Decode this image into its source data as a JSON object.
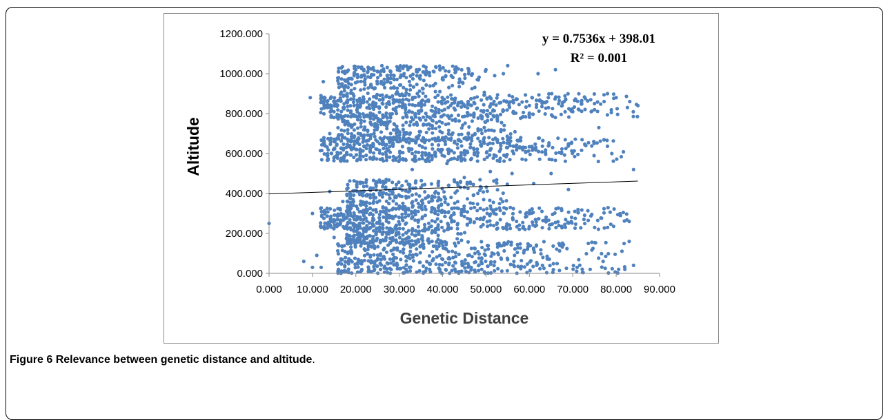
{
  "figure": {
    "caption_label": "Figure 6",
    "caption_text": "Relevance between genetic distance and altitude",
    "caption_end": "."
  },
  "chart_data": {
    "type": "scatter",
    "xlabel": "Genetic Distance",
    "ylabel": "Altitude",
    "xlim": [
      0,
      90
    ],
    "ylim": [
      0,
      1200
    ],
    "x_ticks": [
      "0.000",
      "10.000",
      "20.000",
      "30.000",
      "40.000",
      "50.000",
      "60.000",
      "70.000",
      "80.000",
      "90.000"
    ],
    "y_ticks": [
      "0.000",
      "200.000",
      "400.000",
      "600.000",
      "800.000",
      "1000.000",
      "1200.000"
    ],
    "trendline": {
      "slope": 0.7536,
      "intercept": 398.01,
      "x_range": [
        0,
        85
      ]
    },
    "annotations": [
      "y = 0.7536x + 398.01",
      "R² = 0.001"
    ],
    "series": [
      {
        "marker_color": "#4f81bd",
        "points": [
          [
            0.0,
            250
          ],
          [
            8.0,
            60
          ],
          [
            9.5,
            880
          ],
          [
            10,
            300
          ],
          [
            10,
            30
          ],
          [
            11,
            90
          ],
          [
            12,
            30
          ],
          [
            12.5,
            960
          ],
          [
            13,
            840
          ],
          [
            13.5,
            590
          ],
          [
            14,
            410
          ],
          [
            14,
            700
          ],
          [
            14,
            240
          ],
          [
            15,
            860
          ],
          [
            15,
            180
          ],
          [
            16,
            980
          ],
          [
            16,
            20
          ],
          [
            17,
            760
          ],
          [
            17,
            360
          ],
          [
            18,
            1010
          ],
          [
            18,
            900
          ],
          [
            19,
            620
          ],
          [
            19,
            100
          ],
          [
            20,
            1020
          ],
          [
            21,
            450
          ],
          [
            22,
            990
          ],
          [
            23,
            20
          ],
          [
            24,
            1030
          ],
          [
            25,
            660
          ],
          [
            26,
            1040
          ],
          [
            27,
            470
          ],
          [
            28,
            1010
          ],
          [
            29,
            380
          ],
          [
            30,
            1030
          ],
          [
            31,
            990
          ],
          [
            32,
            1020
          ],
          [
            33,
            520
          ],
          [
            34,
            1010
          ],
          [
            35,
            430
          ],
          [
            36,
            1000
          ],
          [
            37,
            20
          ],
          [
            38,
            1010
          ],
          [
            39,
            440
          ],
          [
            40,
            980
          ],
          [
            41,
            550
          ],
          [
            42,
            990
          ],
          [
            43,
            10
          ],
          [
            44,
            960
          ],
          [
            45,
            480
          ],
          [
            46,
            1000
          ],
          [
            47,
            350
          ],
          [
            48,
            970
          ],
          [
            49,
            20
          ],
          [
            50,
            1020
          ],
          [
            51,
            510
          ],
          [
            52,
            990
          ],
          [
            53,
            150
          ],
          [
            54,
            1000
          ],
          [
            55,
            1040
          ],
          [
            56,
            500
          ],
          [
            57,
            870
          ],
          [
            58,
            680
          ],
          [
            59,
            220
          ],
          [
            60,
            840
          ],
          [
            61,
            450
          ],
          [
            62,
            1000
          ],
          [
            63,
            40
          ],
          [
            64,
            860
          ],
          [
            65,
            500
          ],
          [
            66,
            1020
          ],
          [
            67,
            140
          ],
          [
            68,
            860
          ],
          [
            69,
            420
          ],
          [
            70,
            810
          ],
          [
            71,
            30
          ],
          [
            72,
            860
          ],
          [
            73,
            640
          ],
          [
            74,
            20
          ],
          [
            75,
            850
          ],
          [
            76,
            730
          ],
          [
            77,
            60
          ],
          [
            78,
            900
          ],
          [
            79,
            600
          ],
          [
            80,
            880
          ],
          [
            81,
            290
          ],
          [
            82,
            20
          ],
          [
            83,
            260
          ],
          [
            84,
            40
          ],
          [
            85,
            840
          ],
          [
            84,
            520
          ],
          [
            83,
            160
          ]
        ],
        "bands": [
          {
            "x_range": [
              12,
              85
            ],
            "y_range": [
              780,
              900
            ],
            "x_density": "high-low"
          },
          {
            "x_range": [
              12,
              82
            ],
            "y_range": [
              560,
              680
            ],
            "x_density": "high-low"
          },
          {
            "x_range": [
              12,
              83
            ],
            "y_range": [
              220,
              330
            ],
            "x_density": "high-low"
          },
          {
            "x_range": [
              16,
              82
            ],
            "y_range": [
              0,
              160
            ],
            "x_density": "high-low"
          },
          {
            "x_range": [
              16,
              58
            ],
            "y_range": [
              660,
              790
            ],
            "x_density": "high-low"
          },
          {
            "x_range": [
              16,
              50
            ],
            "y_range": [
              900,
              1040
            ],
            "x_density": "high-low"
          },
          {
            "x_range": [
              18,
              55
            ],
            "y_range": [
              330,
              470
            ],
            "x_density": "high-low"
          },
          {
            "x_range": [
              18,
              45
            ],
            "y_range": [
              150,
              230
            ],
            "x_density": "high-low"
          }
        ]
      }
    ]
  }
}
